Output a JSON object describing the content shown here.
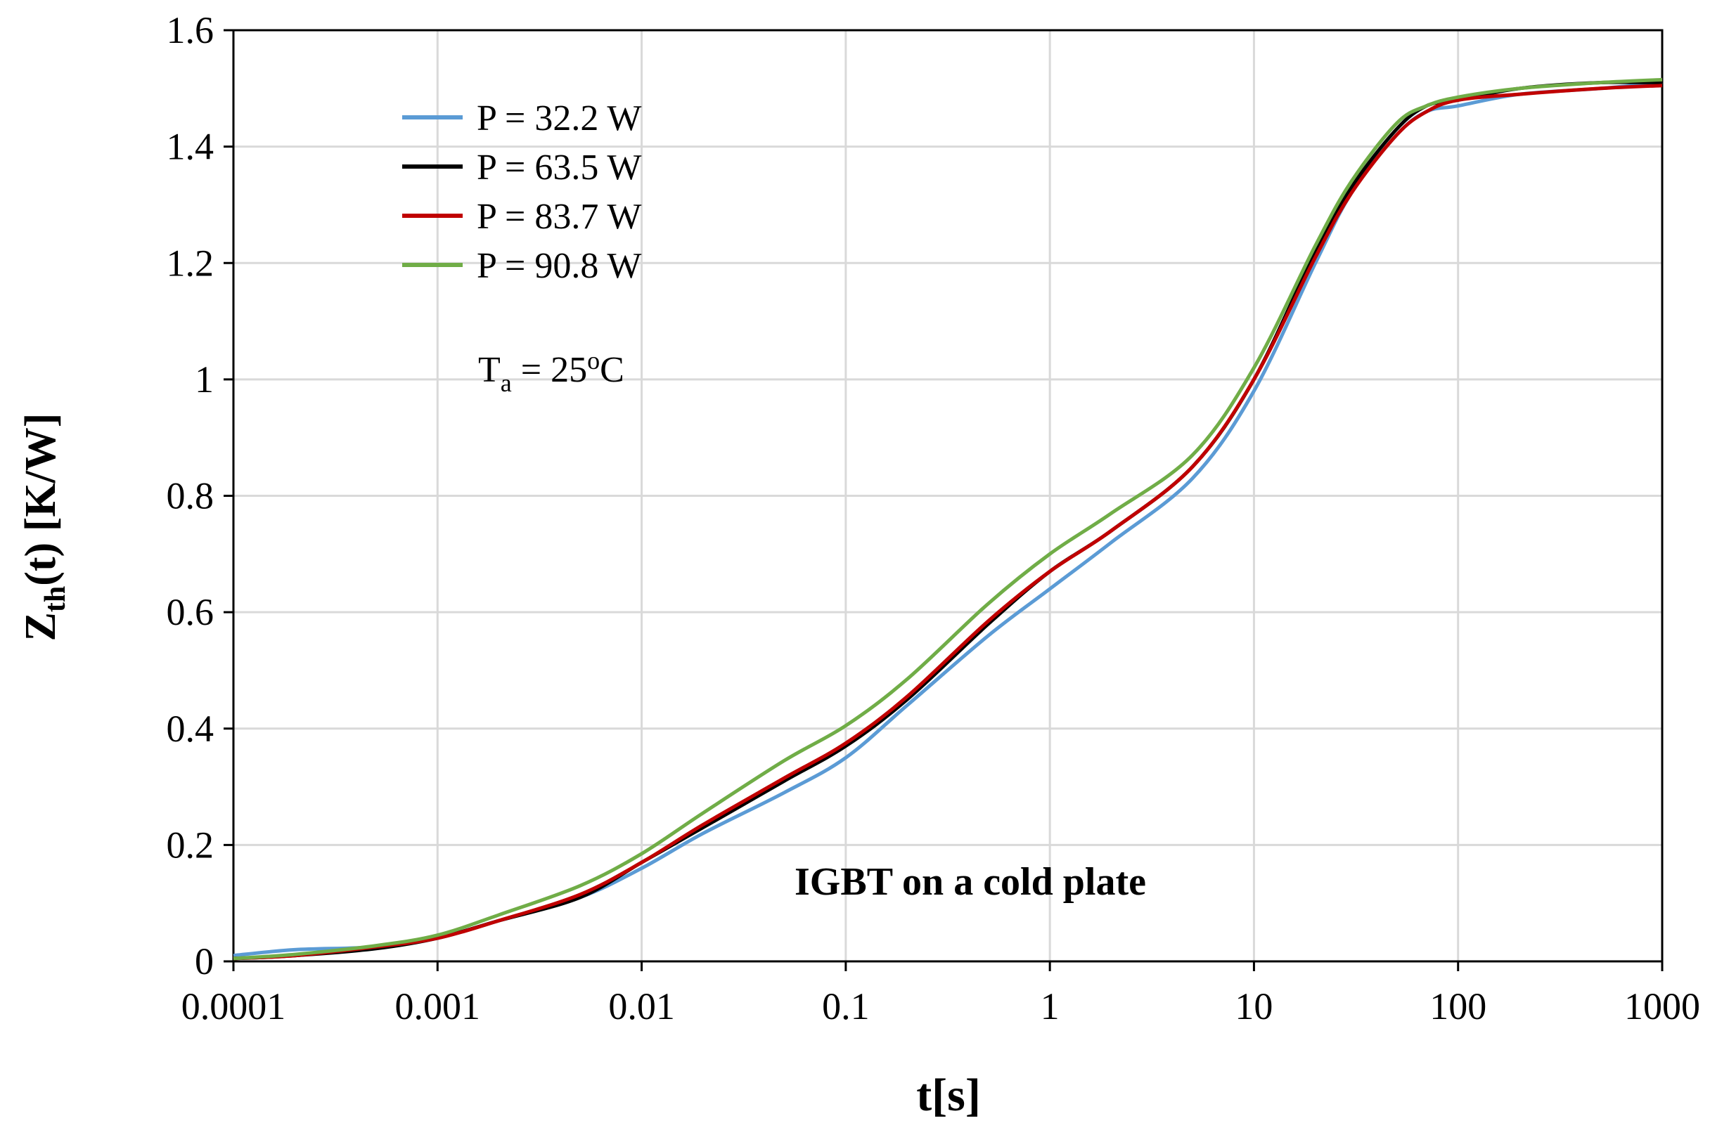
{
  "chart_data": {
    "type": "line",
    "xscale": "log",
    "xlabel": "t[s]",
    "ylabel": {
      "main": "Z",
      "sub": "th",
      "rest": "(t) [K/W]"
    },
    "xlim": [
      0.0001,
      1000
    ],
    "ylim": [
      0,
      1.6
    ],
    "xticks": [
      0.0001,
      0.001,
      0.01,
      0.1,
      1,
      10,
      100,
      1000
    ],
    "xtick_labels": [
      "0.0001",
      "0.001",
      "0.01",
      "0.1",
      "1",
      "10",
      "100",
      "1000"
    ],
    "yticks": [
      0,
      0.2,
      0.4,
      0.6,
      0.8,
      1,
      1.2,
      1.4,
      1.6
    ],
    "ytick_labels": [
      "0",
      "0.2",
      "0.4",
      "0.6",
      "0.8",
      "1",
      "1.2",
      "1.4",
      "1.6"
    ],
    "grid": true,
    "legend_position": "top-left",
    "annotations": {
      "ambient": {
        "main": "T",
        "sub": "a",
        "mid": " = 25",
        "sup": "o",
        "end": "C"
      },
      "device": "IGBT on a cold plate"
    },
    "x": [
      0.0001,
      0.0002,
      0.0005,
      0.001,
      0.002,
      0.005,
      0.01,
      0.02,
      0.05,
      0.1,
      0.2,
      0.5,
      1,
      2,
      5,
      10,
      20,
      30,
      50,
      70,
      100,
      200,
      500,
      1000
    ],
    "series": [
      {
        "name": "P = 32.2 W",
        "color": "#5b9bd5",
        "values": [
          0.01,
          0.02,
          0.025,
          0.04,
          0.07,
          0.11,
          0.16,
          0.22,
          0.29,
          0.35,
          0.44,
          0.56,
          0.64,
          0.72,
          0.83,
          0.98,
          1.2,
          1.32,
          1.42,
          1.46,
          1.47,
          1.49,
          1.5,
          1.51
        ]
      },
      {
        "name": "P = 63.5 W",
        "color": "#000000",
        "values": [
          0.005,
          0.01,
          0.022,
          0.04,
          0.07,
          0.11,
          0.17,
          0.23,
          0.31,
          0.37,
          0.45,
          0.58,
          0.67,
          0.74,
          0.85,
          1.0,
          1.22,
          1.33,
          1.43,
          1.47,
          1.48,
          1.5,
          1.51,
          1.51
        ]
      },
      {
        "name": "P = 83.7 W",
        "color": "#c00000",
        "values": [
          0.005,
          0.01,
          0.025,
          0.04,
          0.07,
          0.115,
          0.17,
          0.235,
          0.315,
          0.375,
          0.455,
          0.585,
          0.67,
          0.74,
          0.85,
          1.0,
          1.21,
          1.32,
          1.42,
          1.46,
          1.48,
          1.49,
          1.5,
          1.505
        ]
      },
      {
        "name": "P = 90.8 W",
        "color": "#70ad47",
        "values": [
          0.005,
          0.012,
          0.027,
          0.045,
          0.08,
          0.13,
          0.185,
          0.255,
          0.345,
          0.405,
          0.485,
          0.615,
          0.7,
          0.77,
          0.87,
          1.02,
          1.23,
          1.34,
          1.44,
          1.47,
          1.485,
          1.5,
          1.51,
          1.515
        ]
      }
    ]
  }
}
